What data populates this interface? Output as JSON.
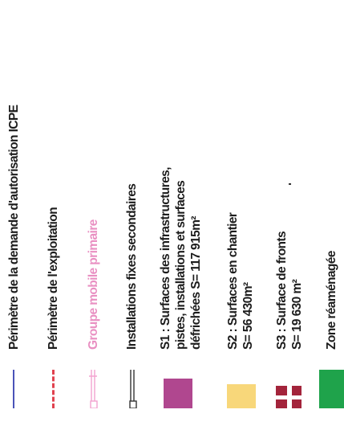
{
  "legend": {
    "items": [
      {
        "id": "perimetre-icpe",
        "label": "Périmètre de la demande d'autorisation ICPE",
        "color": "#4a53b8",
        "symbol": "solid-line"
      },
      {
        "id": "perimetre-exploitation",
        "label": "Périmètre de l'exploitation",
        "color": "#e0424f",
        "symbol": "dashed-line"
      },
      {
        "id": "groupe-mobile",
        "label": "Groupe mobile primaire",
        "color": "#f3a3cf",
        "symbol": "pink-plant-icon"
      },
      {
        "id": "installations-fixes",
        "label": "Installations fixes secondaires",
        "color": "#333333",
        "symbol": "plant-icon"
      },
      {
        "id": "s1",
        "lines": [
          "S1 : Surfaces des infrastructures,",
          "pistes, installations et surfaces",
          "défrichées S= 117 915m²"
        ],
        "color": "#b0478f",
        "symbol": "swatch"
      },
      {
        "id": "s2",
        "lines": [
          "S2 : Surfaces en chantier",
          "S= 56 430m²"
        ],
        "color": "#f8d77a",
        "symbol": "swatch"
      },
      {
        "id": "s3",
        "lines": [
          "S3 : Surface de fronts",
          "S= 19 630 m²"
        ],
        "color": "#a3243b",
        "symbol": "striped-swatch"
      },
      {
        "id": "zone-reamenagee",
        "label": "Zone réaménagée",
        "color": "#1fa34b",
        "symbol": "swatch"
      }
    ]
  }
}
